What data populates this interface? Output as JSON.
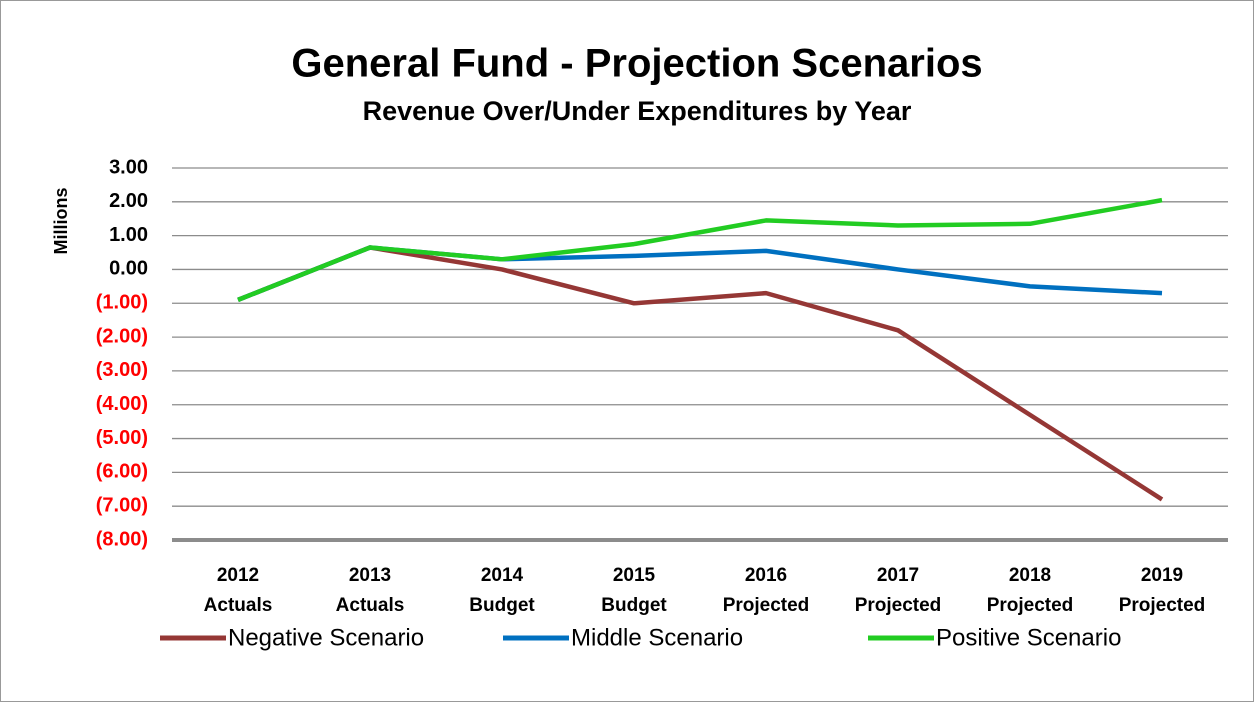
{
  "chart_data": {
    "type": "line",
    "title": "General Fund - Projection Scenarios",
    "subtitle": "Revenue Over/Under Expenditures by Year",
    "y_label": "Millions",
    "categories": [
      [
        "2012",
        "Actuals"
      ],
      [
        "2013",
        "Actuals"
      ],
      [
        "2014",
        "Budget"
      ],
      [
        "2015",
        "Budget"
      ],
      [
        "2016",
        "Projected"
      ],
      [
        "2017",
        "Projected"
      ],
      [
        "2018",
        "Projected"
      ],
      [
        "2019",
        "Projected"
      ]
    ],
    "series": [
      {
        "name": "Negative Scenario",
        "color": "#953735",
        "values": [
          -0.9,
          0.65,
          0.0,
          -1.0,
          -0.7,
          -1.8,
          -4.3,
          -6.8
        ]
      },
      {
        "name": "Middle Scenario",
        "color": "#0070c0",
        "values": [
          -0.9,
          0.65,
          0.3,
          0.4,
          0.55,
          0.0,
          -0.5,
          -0.7
        ]
      },
      {
        "name": "Positive Scenario",
        "color": "#22cc22",
        "values": [
          -0.9,
          0.65,
          0.3,
          0.75,
          1.45,
          1.3,
          1.35,
          2.05
        ]
      }
    ],
    "ylim": [
      -8,
      3
    ],
    "yticks": [
      {
        "value": -8,
        "label": "(8.00)"
      },
      {
        "value": -7,
        "label": "(7.00)"
      },
      {
        "value": -6,
        "label": "(6.00)"
      },
      {
        "value": -5,
        "label": "(5.00)"
      },
      {
        "value": -4,
        "label": "(4.00)"
      },
      {
        "value": -3,
        "label": "(3.00)"
      },
      {
        "value": -2,
        "label": "(2.00)"
      },
      {
        "value": -1,
        "label": "(1.00)"
      },
      {
        "value": 0,
        "label": "0.00"
      },
      {
        "value": 1,
        "label": "1.00"
      },
      {
        "value": 2,
        "label": "2.00"
      },
      {
        "value": 3,
        "label": "3.00"
      }
    ],
    "grid": true,
    "negative_tick_color": "#ff0000",
    "legend": "bottom"
  }
}
